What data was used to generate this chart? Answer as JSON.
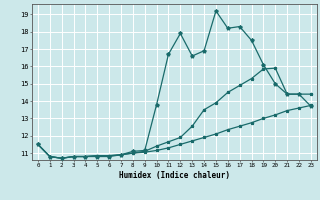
{
  "xlabel": "Humidex (Indice chaleur)",
  "bg_color": "#cce8ea",
  "grid_color": "#ffffff",
  "line_color": "#1a6b6b",
  "xlim": [
    -0.5,
    23.5
  ],
  "ylim": [
    10.6,
    19.6
  ],
  "yticks": [
    11,
    12,
    13,
    14,
    15,
    16,
    17,
    18,
    19
  ],
  "xticks": [
    0,
    1,
    2,
    3,
    4,
    5,
    6,
    7,
    8,
    9,
    10,
    11,
    12,
    13,
    14,
    15,
    16,
    17,
    18,
    19,
    20,
    21,
    22,
    23
  ],
  "series1": {
    "x": [
      0,
      1,
      2,
      3,
      4,
      5,
      6,
      7,
      8,
      9,
      10,
      11,
      12,
      13,
      14,
      15,
      16,
      17,
      18,
      19,
      20,
      21,
      22,
      23
    ],
    "y": [
      11.5,
      10.8,
      10.7,
      10.8,
      10.8,
      10.8,
      10.8,
      10.9,
      11.1,
      11.15,
      13.8,
      16.7,
      17.9,
      16.6,
      16.9,
      19.2,
      18.2,
      18.3,
      17.5,
      16.1,
      15.0,
      14.4,
      14.4,
      13.7
    ]
  },
  "series2": {
    "x": [
      0,
      1,
      2,
      3,
      4,
      5,
      6,
      7,
      8,
      9,
      10,
      11,
      12,
      13,
      14,
      15,
      16,
      17,
      18,
      19,
      20,
      21,
      22,
      23
    ],
    "y": [
      11.5,
      10.8,
      10.7,
      10.8,
      10.8,
      10.85,
      10.85,
      10.9,
      11.0,
      11.1,
      11.4,
      11.65,
      11.9,
      12.55,
      13.5,
      13.9,
      14.5,
      14.9,
      15.3,
      15.85,
      15.9,
      14.4,
      14.4,
      14.4
    ]
  },
  "series3": {
    "x": [
      0,
      1,
      2,
      3,
      4,
      5,
      6,
      7,
      8,
      9,
      10,
      11,
      12,
      13,
      14,
      15,
      16,
      17,
      18,
      19,
      20,
      21,
      22,
      23
    ],
    "y": [
      11.5,
      10.8,
      10.7,
      10.8,
      10.8,
      10.85,
      10.85,
      10.9,
      11.0,
      11.05,
      11.15,
      11.3,
      11.5,
      11.7,
      11.9,
      12.1,
      12.35,
      12.55,
      12.75,
      13.0,
      13.2,
      13.45,
      13.6,
      13.75
    ]
  }
}
